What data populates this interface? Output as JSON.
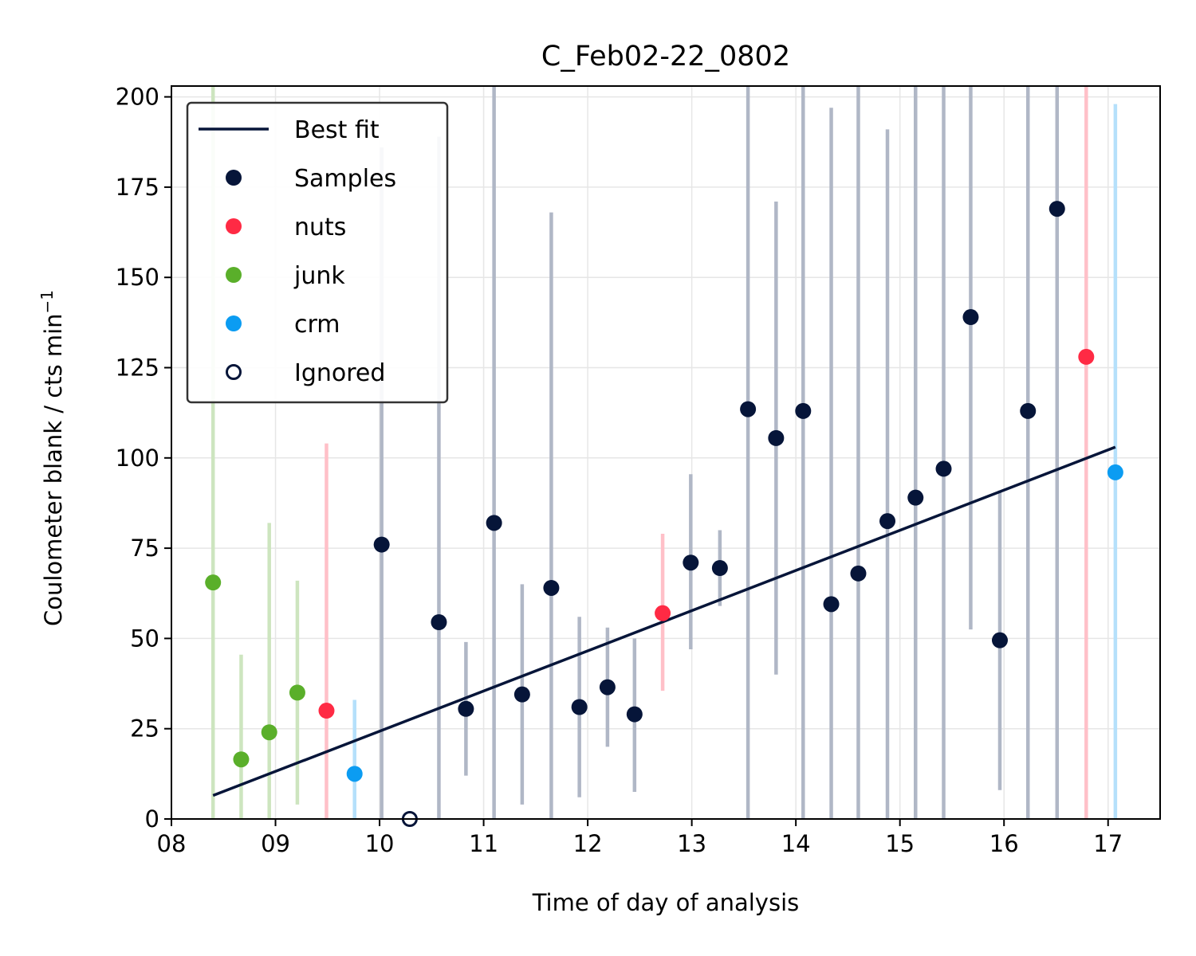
{
  "chart_data": {
    "type": "scatter",
    "title": "C_Feb02-22_0802",
    "xlabel": "Time of day of analysis",
    "ylabel": "Coulometer blank / cts min",
    "ylabel_sup": "−1",
    "xlim": [
      8.0,
      17.5
    ],
    "ylim": [
      0,
      203
    ],
    "x_ticks": [
      8,
      9,
      10,
      11,
      12,
      13,
      14,
      15,
      16,
      17
    ],
    "x_tick_labels": [
      "08",
      "09",
      "10",
      "11",
      "12",
      "13",
      "14",
      "15",
      "16",
      "17"
    ],
    "y_ticks": [
      0,
      25,
      50,
      75,
      100,
      125,
      150,
      175,
      200
    ],
    "y_tick_labels": [
      "0",
      "25",
      "50",
      "75",
      "100",
      "125",
      "150",
      "175",
      "200"
    ],
    "grid": true,
    "legend_position": "top-left",
    "colors": {
      "samples": "#061539",
      "nuts": "#ff2a44",
      "junk": "#5aaf2a",
      "crm": "#0b9cf2",
      "fit": "#061539"
    },
    "best_fit": {
      "name": "Best fit",
      "x": [
        8.4,
        17.07
      ],
      "y": [
        6.5,
        103
      ]
    },
    "series": [
      {
        "name": "Samples",
        "key": "samples",
        "points": [
          {
            "x": 10.02,
            "y": 76,
            "lo": 0,
            "hi": 186
          },
          {
            "x": 10.57,
            "y": 54.5,
            "lo": 0,
            "hi": 189
          },
          {
            "x": 10.83,
            "y": 30.5,
            "lo": 12,
            "hi": 49
          },
          {
            "x": 11.1,
            "y": 82,
            "lo": 0,
            "hi": 210
          },
          {
            "x": 11.37,
            "y": 34.5,
            "lo": 4,
            "hi": 65
          },
          {
            "x": 11.65,
            "y": 64,
            "lo": 0,
            "hi": 168
          },
          {
            "x": 11.92,
            "y": 31,
            "lo": 6,
            "hi": 56
          },
          {
            "x": 12.19,
            "y": 36.5,
            "lo": 20,
            "hi": 53
          },
          {
            "x": 12.45,
            "y": 29,
            "lo": 7.5,
            "hi": 50
          },
          {
            "x": 12.99,
            "y": 71,
            "lo": 47,
            "hi": 95.5
          },
          {
            "x": 13.27,
            "y": 69.5,
            "lo": 59,
            "hi": 80
          },
          {
            "x": 13.54,
            "y": 113.5,
            "lo": 0,
            "hi": 210
          },
          {
            "x": 13.81,
            "y": 105.5,
            "lo": 40,
            "hi": 171
          },
          {
            "x": 14.07,
            "y": 113,
            "lo": 0,
            "hi": 210
          },
          {
            "x": 14.34,
            "y": 59.5,
            "lo": 0,
            "hi": 197
          },
          {
            "x": 14.6,
            "y": 68,
            "lo": 0,
            "hi": 210
          },
          {
            "x": 14.88,
            "y": 82.5,
            "lo": 0,
            "hi": 191
          },
          {
            "x": 15.15,
            "y": 89,
            "lo": 0,
            "hi": 210
          },
          {
            "x": 15.42,
            "y": 97,
            "lo": 0,
            "hi": 210
          },
          {
            "x": 15.68,
            "y": 139,
            "lo": 52.5,
            "hi": 210
          },
          {
            "x": 15.96,
            "y": 49.5,
            "lo": 8,
            "hi": 91
          },
          {
            "x": 16.23,
            "y": 113,
            "lo": 0,
            "hi": 210
          },
          {
            "x": 16.51,
            "y": 169,
            "lo": 0,
            "hi": 210
          }
        ]
      },
      {
        "name": "nuts",
        "key": "nuts",
        "points": [
          {
            "x": 9.49,
            "y": 30,
            "lo": 0,
            "hi": 104
          },
          {
            "x": 12.72,
            "y": 57,
            "lo": 35.5,
            "hi": 79
          },
          {
            "x": 16.79,
            "y": 128,
            "lo": 0,
            "hi": 210
          }
        ]
      },
      {
        "name": "junk",
        "key": "junk",
        "points": [
          {
            "x": 8.4,
            "y": 65.5,
            "lo": 0,
            "hi": 210
          },
          {
            "x": 8.67,
            "y": 16.5,
            "lo": 0,
            "hi": 45.5
          },
          {
            "x": 8.94,
            "y": 24,
            "lo": 0,
            "hi": 82
          },
          {
            "x": 9.21,
            "y": 35,
            "lo": 4,
            "hi": 66
          }
        ]
      },
      {
        "name": "crm",
        "key": "crm",
        "points": [
          {
            "x": 9.76,
            "y": 12.5,
            "lo": 0,
            "hi": 33
          },
          {
            "x": 17.07,
            "y": 96,
            "lo": 0,
            "hi": 198
          }
        ]
      },
      {
        "name": "Ignored",
        "key": "ignored",
        "points": [
          {
            "x": 10.29,
            "y": 0
          }
        ]
      }
    ],
    "legend_entries": [
      "Best fit",
      "Samples",
      "nuts",
      "junk",
      "crm",
      "Ignored"
    ]
  }
}
